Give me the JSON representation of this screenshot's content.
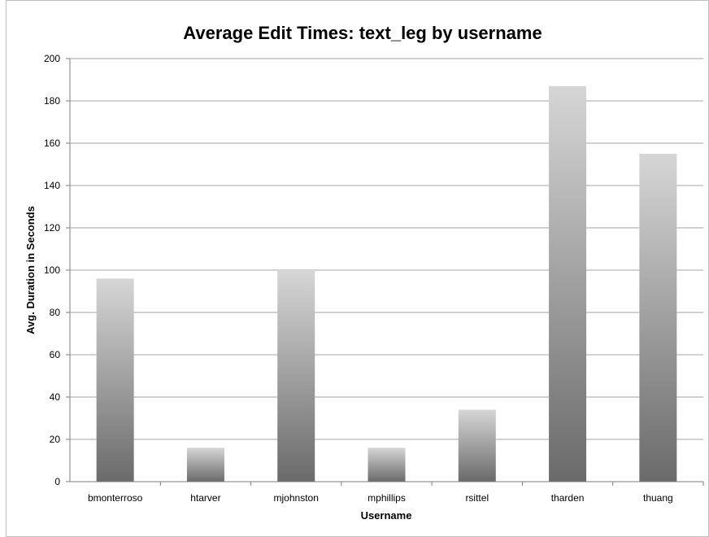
{
  "chart_data": {
    "type": "bar",
    "title": "Average Edit Times: text_leg by username",
    "xlabel": "Username",
    "ylabel": "Avg. Duration in Seconds",
    "categories": [
      "bmonterroso",
      "htarver",
      "mjohnston",
      "mphillips",
      "rsittel",
      "tharden",
      "thuang"
    ],
    "values": [
      96,
      16,
      100,
      16,
      34,
      187,
      155
    ],
    "ylim": [
      0,
      200
    ],
    "yticks": [
      0,
      20,
      40,
      60,
      80,
      100,
      120,
      140,
      160,
      180,
      200
    ],
    "grid": true,
    "legend": "none",
    "colors": {
      "bar_top": "#d6d6d6",
      "bar_bottom": "#6a6a6a",
      "gridline": "#a6a6a6",
      "axis": "#7f7f7f",
      "frame": "#c0c0c0"
    }
  }
}
